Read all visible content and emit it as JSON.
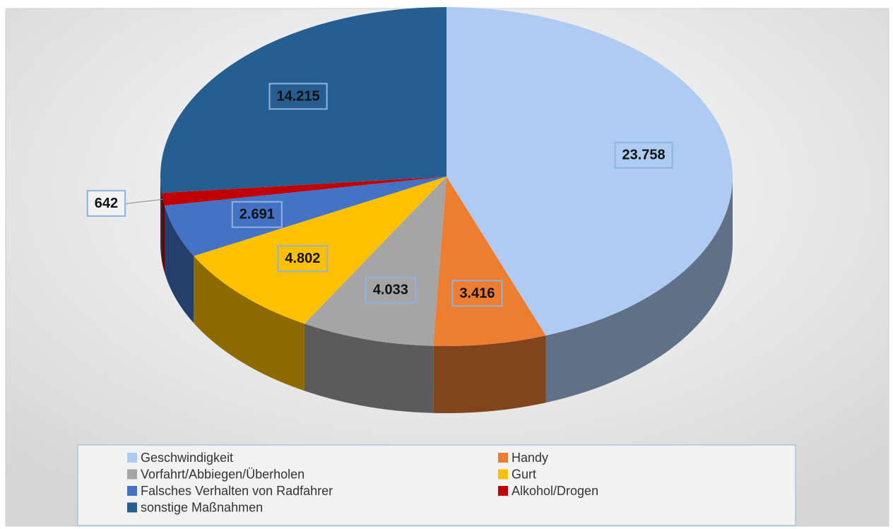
{
  "chart_data": {
    "type": "pie",
    "categories": [
      "Geschwindigkeit",
      "Handy",
      "Vorfahrt/Abbiegen/Überholen",
      "Gurt",
      "Falsches Verhalten von Radfahrer",
      "Alkohol/Drogen",
      "sonstige Maßnahmen"
    ],
    "values": [
      23758,
      3416,
      4033,
      4802,
      2691,
      642,
      14215
    ],
    "value_labels": [
      "23.758",
      "3.416",
      "4.033",
      "4.802",
      "2.691",
      "642",
      "14.215"
    ],
    "colors": [
      "#aecbf4",
      "#ed7d31",
      "#a5a5a5",
      "#ffc000",
      "#4472c4",
      "#c00000",
      "#255e91"
    ],
    "legend": "bottom"
  }
}
